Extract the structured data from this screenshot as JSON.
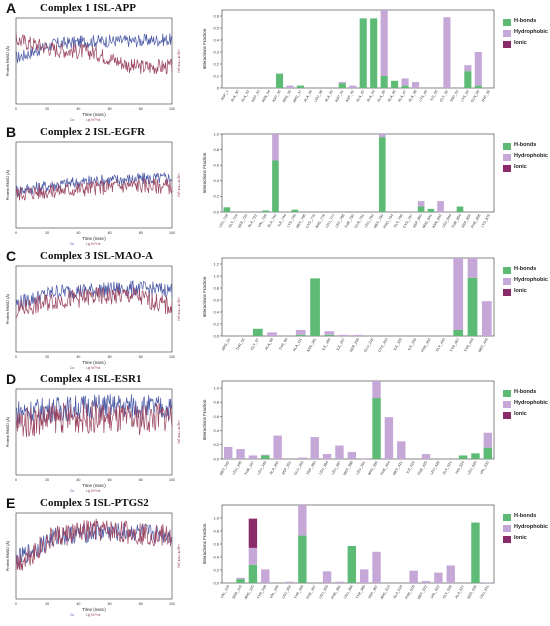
{
  "colors": {
    "hbonds": "#5dbb76",
    "hydrophobic": "#c5a8d8",
    "ionic": "#8b2a6b",
    "water": "#a3b3c9",
    "protein_line": "#4b5aa6",
    "ligand_line": "#9b4661"
  },
  "legend_labels": [
    "H-bonds",
    "Hydrophobic",
    "Ionic"
  ],
  "rmsd_common": {
    "xlabel": "Time (nsec)",
    "ylabel_left": "Protein RMSD (Å)",
    "ylabel_right": "Lig fit Prot (Å)",
    "legend": [
      "Cα",
      "Lig fit Prot"
    ],
    "xticks": [
      "0",
      "20",
      "40",
      "60",
      "80",
      "100"
    ]
  },
  "interaction_ylabel": "Interactions Fraction",
  "chart_data": [
    {
      "id": "A",
      "title": "Complex 1 ISL-APP",
      "type": "bar",
      "rmsd_ylim": [
        0,
        6
      ],
      "yticks": [
        "0",
        "0.1",
        "0.2",
        "0.3",
        "0.4",
        "0.5",
        "0.6"
      ],
      "ylim": [
        0,
        0.65
      ],
      "categories": [
        "ASP_1",
        "ALA_30",
        "ALA_32",
        "ASP_33",
        "ASN_34",
        "ASP_36",
        "ARG_35",
        "ARG_37",
        "ALA_39",
        "LEU_38",
        "ALA_40",
        "ASP_41",
        "ASP_42",
        "ALA_43",
        "ALA_44",
        "ALA_45",
        "ALA_46",
        "ALA_47",
        "ALA_48",
        "LYS_49",
        "ILE_50",
        "GLY_52",
        "TRP_53",
        "LYS_54",
        "GLN_55",
        "TRP_56"
      ],
      "series": [
        {
          "name": "H-bonds",
          "values": [
            0,
            0,
            0,
            0,
            0,
            0.12,
            0,
            0.02,
            0,
            0,
            0,
            0.04,
            0,
            0.58,
            0.58,
            0.1,
            0.06,
            0.02,
            0,
            0,
            0,
            0,
            0,
            0.14,
            0.02,
            0
          ]
        },
        {
          "name": "Hydrophobic",
          "values": [
            0,
            0,
            0,
            0,
            0,
            0,
            0.02,
            0,
            0,
            0,
            0,
            0.01,
            0.02,
            0,
            0,
            0.55,
            0,
            0.06,
            0.05,
            0,
            0,
            0.59,
            0,
            0.05,
            0.28,
            0
          ]
        },
        {
          "name": "Ionic",
          "values": [
            0,
            0,
            0,
            0,
            0,
            0,
            0,
            0,
            0,
            0,
            0,
            0,
            0,
            0,
            0,
            0,
            0,
            0,
            0,
            0,
            0,
            0,
            0,
            0,
            0,
            0
          ]
        }
      ]
    },
    {
      "id": "B",
      "title": "Complex 2 ISL-EGFR",
      "type": "bar",
      "rmsd_ylim": [
        0,
        6
      ],
      "yticks": [
        "0.0",
        "0.2",
        "0.4",
        "0.6",
        "0.8",
        "1.0"
      ],
      "ylim": [
        0,
        1.0
      ],
      "categories": [
        "LEU_718",
        "GLY_719",
        "SER_720",
        "ALA_722",
        "VAL_726",
        "ALA_743",
        "ILE_744",
        "LYS_745",
        "MET_766",
        "CYS_775",
        "ARG_776",
        "LEU_777",
        "LEU_788",
        "THR_790",
        "GLN_791",
        "LEU_792",
        "MET_793",
        "PRO_794",
        "GLY_796",
        "CYS_797",
        "ASP_800",
        "ARG_841",
        "ASN_842",
        "LEU_844",
        "THR_854",
        "ASP_855",
        "PHE_856",
        "LYS_875"
      ],
      "series": [
        {
          "name": "H-bonds",
          "values": [
            0.06,
            0,
            0,
            0,
            0.02,
            0.66,
            0,
            0.03,
            0,
            0,
            0,
            0,
            0,
            0,
            0,
            0,
            0.96,
            0,
            0,
            0,
            0.07,
            0.04,
            0,
            0,
            0.07,
            0,
            0,
            0
          ]
        },
        {
          "name": "Hydrophobic",
          "values": [
            0,
            0,
            0,
            0,
            0,
            0.68,
            0,
            0,
            0,
            0,
            0,
            0,
            0,
            0,
            0,
            0,
            1.0,
            0,
            0,
            0,
            0.07,
            0,
            0.14,
            0,
            0,
            0,
            0,
            0
          ]
        },
        {
          "name": "Ionic",
          "values": [
            0,
            0,
            0,
            0,
            0,
            0,
            0,
            0,
            0,
            0,
            0,
            0,
            0,
            0,
            0,
            0,
            0,
            0,
            0,
            0,
            0,
            0,
            0,
            0,
            0,
            0,
            0,
            0
          ]
        }
      ]
    },
    {
      "id": "C",
      "title": "Complex 3 ISL-MAO-A",
      "type": "bar",
      "rmsd_ylim": [
        0,
        5
      ],
      "yticks": [
        "0.0",
        "0.2",
        "0.4",
        "0.6",
        "0.8",
        "1.0",
        "1.2"
      ],
      "ylim": [
        0,
        1.3
      ],
      "categories": [
        "ARG_51",
        "THR_52",
        "GLY_67",
        "ALA_68",
        "TYR_69",
        "ALA_111",
        "ASN_181",
        "ILE_180",
        "ILE_207",
        "SER_209",
        "GLU_216",
        "CYS_323",
        "ILE_325",
        "ILE_335",
        "PHE_352",
        "GLY_443",
        "TYR_407",
        "TYR_444",
        "MET_445"
      ],
      "series": [
        {
          "name": "H-bonds",
          "values": [
            0,
            0,
            0.12,
            0,
            0,
            0.02,
            0.96,
            0.02,
            0,
            0,
            0,
            0,
            0,
            0,
            0,
            0,
            0.1,
            0.97,
            0
          ]
        },
        {
          "name": "Hydrophobic",
          "values": [
            0,
            0,
            0,
            0.06,
            0,
            0.08,
            0,
            0.06,
            0.02,
            0.02,
            0,
            0,
            0,
            0,
            0,
            0,
            1.25,
            0.98,
            0.58
          ]
        },
        {
          "name": "Ionic",
          "values": [
            0,
            0,
            0,
            0,
            0,
            0,
            0,
            0,
            0,
            0,
            0,
            0,
            0,
            0,
            0,
            0,
            0,
            0,
            0
          ]
        }
      ]
    },
    {
      "id": "D",
      "title": "Complex 4 ISL-ESR1",
      "type": "bar",
      "rmsd_ylim": [
        0,
        3
      ],
      "yticks": [
        "0.0",
        "0.2",
        "0.4",
        "0.6",
        "0.8",
        "1.0"
      ],
      "ylim": [
        0,
        1.1
      ],
      "categories": [
        "MET_343",
        "LEU_346",
        "THR_347",
        "LEU_349",
        "ALA_350",
        "ASP_351",
        "GLU_353",
        "TRP_383",
        "LEU_384",
        "LEU_387",
        "MET_388",
        "LEU_391",
        "ARG_394",
        "PHE_404",
        "MET_421",
        "ILE_424",
        "PHE_425",
        "LEU_428",
        "GLY_521",
        "HIS_524",
        "LEU_525",
        "VAL_533"
      ],
      "series": [
        {
          "name": "H-bonds",
          "values": [
            0,
            0,
            0,
            0.05,
            0,
            0,
            0,
            0,
            0,
            0,
            0,
            0,
            0.86,
            0,
            0,
            0,
            0,
            0,
            0,
            0.05,
            0.08,
            0.16
          ]
        },
        {
          "name": "Hydrophobic",
          "values": [
            0.17,
            0.14,
            0.05,
            0.01,
            0.33,
            0,
            0.02,
            0.31,
            0.07,
            0.19,
            0.1,
            0.01,
            0.86,
            0.59,
            0.25,
            0,
            0.07,
            0,
            0,
            0,
            0,
            0.21
          ]
        },
        {
          "name": "Ionic",
          "values": [
            0,
            0,
            0,
            0,
            0,
            0,
            0,
            0,
            0,
            0,
            0,
            0,
            0,
            0,
            0,
            0,
            0,
            0,
            0,
            0,
            0,
            0
          ]
        }
      ]
    },
    {
      "id": "E",
      "title": "Complex 5 ISL-PTGS2",
      "type": "bar",
      "rmsd_ylim": [
        0,
        4
      ],
      "yticks": [
        "0.0",
        "0.2",
        "0.4",
        "0.6",
        "0.8",
        "1.0"
      ],
      "ylim": [
        0,
        1.2
      ],
      "categories": [
        "VAL_116",
        "SER_119",
        "ARG_120",
        "TYR_348",
        "VAL_349",
        "LEU_352",
        "TYR_355",
        "PHE_357",
        "LEU_359",
        "PHE_381",
        "LEU_384",
        "TYR_385",
        "TRP_387",
        "ARG_513",
        "ALA_516",
        "PHE_518",
        "MET_522",
        "VAL_523",
        "GLY_526",
        "ALA_527",
        "SER_530",
        "LEU_531"
      ],
      "series": [
        {
          "name": "H-bonds",
          "values": [
            0,
            0.06,
            0.28,
            0,
            0,
            0,
            0.73,
            0,
            0,
            0,
            0.57,
            0,
            0,
            0,
            0,
            0,
            0,
            0,
            0,
            0,
            0.93,
            0
          ]
        },
        {
          "name": "Hydrophobic",
          "values": [
            0,
            0.02,
            0.26,
            0.21,
            0,
            0.02,
            0.47,
            0,
            0.18,
            0.02,
            0,
            0.21,
            0.48,
            0,
            0,
            0.19,
            0.03,
            0.16,
            0.27,
            0,
            0,
            0.01
          ]
        },
        {
          "name": "Ionic",
          "values": [
            0,
            0,
            0.45,
            0,
            0,
            0,
            0,
            0,
            0,
            0,
            0,
            0,
            0,
            0,
            0,
            0,
            0,
            0,
            0,
            0,
            0,
            0
          ]
        }
      ]
    }
  ]
}
